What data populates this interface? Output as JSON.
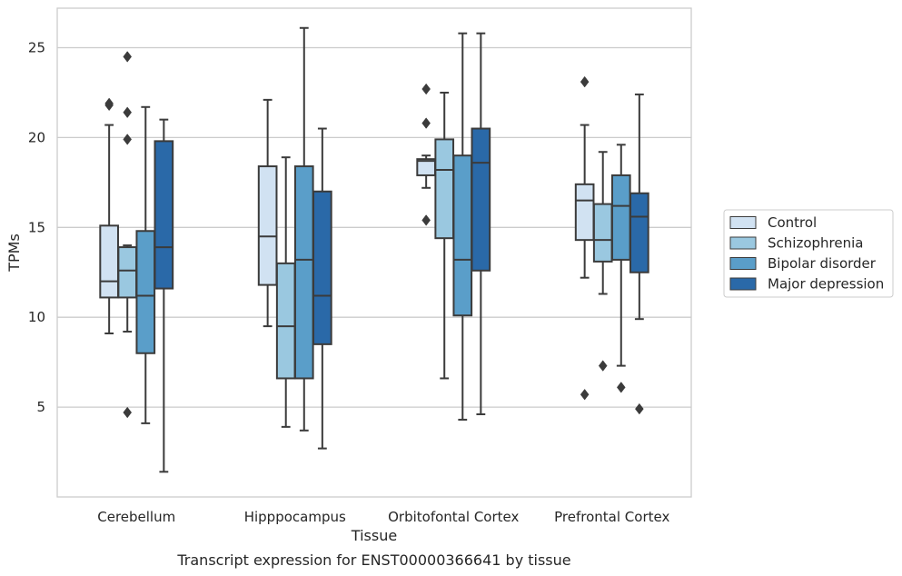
{
  "chart_data": {
    "type": "box",
    "xlabel": "Tissue",
    "ylabel": "TPMs",
    "caption": "Transcript expression for ENST00000366641 by tissue",
    "ylim": [
      0,
      27.2
    ],
    "yticks": [
      5,
      10,
      15,
      20,
      25
    ],
    "grid": "horizontal",
    "legend_position": "right",
    "categories": [
      "Cerebellum",
      "Hipppocampus",
      "Orbitofontal Cortex",
      "Prefrontal Cortex"
    ],
    "series": [
      {
        "name": "Control",
        "color": "#d1e2f2",
        "boxes": [
          {
            "whislo": 9.1,
            "q1": 11.1,
            "med": 12.0,
            "q3": 15.1,
            "whishi": 20.7,
            "fliers": [
              21.8,
              21.9
            ]
          },
          {
            "whislo": 9.5,
            "q1": 11.8,
            "med": 14.5,
            "q3": 18.4,
            "whishi": 22.1,
            "fliers": []
          },
          {
            "whislo": 17.2,
            "q1": 17.9,
            "med": 18.7,
            "q3": 18.8,
            "whishi": 19.0,
            "fliers": [
              22.7,
              20.8,
              15.4
            ]
          },
          {
            "whislo": 12.2,
            "q1": 14.3,
            "med": 16.5,
            "q3": 17.4,
            "whishi": 20.7,
            "fliers": [
              23.1,
              5.7
            ]
          }
        ]
      },
      {
        "name": "Schizophrenia",
        "color": "#9ac8e0",
        "boxes": [
          {
            "whislo": 9.2,
            "q1": 11.1,
            "med": 12.6,
            "q3": 13.9,
            "whishi": 14.0,
            "fliers": [
              24.5,
              21.4,
              19.9,
              4.7
            ]
          },
          {
            "whislo": 3.9,
            "q1": 6.6,
            "med": 9.5,
            "q3": 13.0,
            "whishi": 18.9,
            "fliers": []
          },
          {
            "whislo": 6.6,
            "q1": 14.4,
            "med": 18.2,
            "q3": 19.9,
            "whishi": 22.5,
            "fliers": []
          },
          {
            "whislo": 11.3,
            "q1": 13.1,
            "med": 14.3,
            "q3": 16.3,
            "whishi": 19.2,
            "fliers": [
              7.3
            ]
          }
        ]
      },
      {
        "name": "Bipolar disorder",
        "color": "#5a9ec9",
        "boxes": [
          {
            "whislo": 4.1,
            "q1": 8.0,
            "med": 11.2,
            "q3": 14.8,
            "whishi": 21.7,
            "fliers": []
          },
          {
            "whislo": 3.7,
            "q1": 6.6,
            "med": 13.2,
            "q3": 18.4,
            "whishi": 26.1,
            "fliers": []
          },
          {
            "whislo": 4.3,
            "q1": 10.1,
            "med": 13.2,
            "q3": 19.0,
            "whishi": 25.8,
            "fliers": []
          },
          {
            "whislo": 7.3,
            "q1": 13.2,
            "med": 16.2,
            "q3": 17.9,
            "whishi": 19.6,
            "fliers": [
              6.1
            ]
          }
        ]
      },
      {
        "name": "Major depression",
        "color": "#2a69a8",
        "boxes": [
          {
            "whislo": 1.4,
            "q1": 11.6,
            "med": 13.9,
            "q3": 19.8,
            "whishi": 21.0,
            "fliers": []
          },
          {
            "whislo": 2.7,
            "q1": 8.5,
            "med": 11.2,
            "q3": 17.0,
            "whishi": 20.5,
            "fliers": []
          },
          {
            "whislo": 4.6,
            "q1": 12.6,
            "med": 18.6,
            "q3": 20.5,
            "whishi": 25.8,
            "fliers": []
          },
          {
            "whislo": 9.9,
            "q1": 12.5,
            "med": 15.6,
            "q3": 16.9,
            "whishi": 22.4,
            "fliers": [
              4.9
            ]
          }
        ]
      }
    ]
  }
}
